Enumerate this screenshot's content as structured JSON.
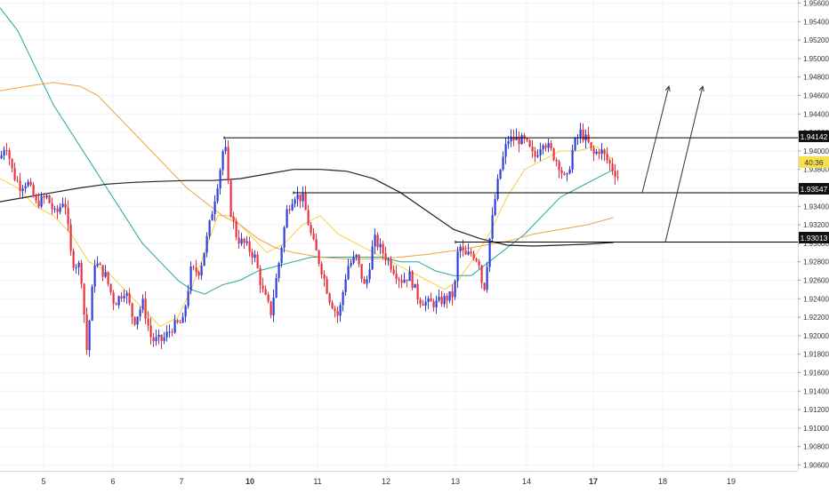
{
  "colors": {
    "background": "#ffffff",
    "up_candle": "#2f3fd9",
    "down_candle": "#e8333f",
    "ema_fast": "#f6d13a",
    "ema_teal": "#26a69a",
    "ema_orange": "#f3a23a",
    "ema_black": "#222222",
    "level_line": "#000000",
    "axis_text": "#333333",
    "grid": "#f0f3fa",
    "current_price_tag": "#f6e04b"
  },
  "price_axis": {
    "ticks": [
      "1.95600",
      "1.95400",
      "1.95200",
      "1.95000",
      "1.94800",
      "1.94600",
      "1.94400",
      "1.94200",
      "1.94000",
      "1.93800",
      "1.93600",
      "1.93400",
      "1.93200",
      "1.93000",
      "1.92800",
      "1.92600",
      "1.92400",
      "1.92200",
      "1.92000",
      "1.91800",
      "1.91600",
      "1.91400",
      "1.91200",
      "1.91000",
      "1.90800",
      "1.90600"
    ]
  },
  "time_axis": {
    "labels": [
      "5",
      "6",
      "7",
      "10",
      "11",
      "12",
      "13",
      "14",
      "17",
      "18",
      "19"
    ]
  },
  "level_labels": {
    "upper": "1.94142",
    "middle": "1.93547",
    "lower": "1.93013",
    "countdown": "40:36"
  },
  "chart_data": {
    "type": "candlestick",
    "title": "",
    "xlabel": "",
    "ylabel": "",
    "ylim": [
      1.905,
      1.9565
    ],
    "x_day_labels": [
      "5",
      "6",
      "7",
      "10",
      "11",
      "12",
      "13",
      "14",
      "17",
      "18",
      "19"
    ],
    "horizontal_levels": [
      1.94142,
      1.93547,
      1.93013
    ],
    "countdown": "40:36",
    "projection_arrows": [
      {
        "from": 1.93547,
        "to": 1.947
      },
      {
        "from": 1.93013,
        "to": 1.947
      }
    ],
    "series": [
      {
        "type": "ema",
        "color": "#f6d13a",
        "points": [
          [
            0,
            1.937
          ],
          [
            20,
            1.936
          ],
          [
            40,
            1.934
          ],
          [
            60,
            1.933
          ],
          [
            80,
            1.931
          ],
          [
            100,
            1.928
          ],
          [
            120,
            1.927
          ],
          [
            140,
            1.925
          ],
          [
            160,
            1.923
          ],
          [
            180,
            1.921
          ],
          [
            200,
            1.922
          ],
          [
            215,
            1.925
          ],
          [
            230,
            1.929
          ],
          [
            245,
            1.933
          ],
          [
            260,
            1.933
          ],
          [
            280,
            1.931
          ],
          [
            300,
            1.929
          ],
          [
            320,
            1.93
          ],
          [
            340,
            1.932
          ],
          [
            360,
            1.933
          ],
          [
            380,
            1.931
          ],
          [
            400,
            1.93
          ],
          [
            420,
            1.929
          ],
          [
            440,
            1.928
          ],
          [
            460,
            1.927
          ],
          [
            480,
            1.926
          ],
          [
            500,
            1.925
          ],
          [
            515,
            1.926
          ],
          [
            530,
            1.928
          ],
          [
            550,
            1.931
          ],
          [
            570,
            1.935
          ],
          [
            590,
            1.938
          ],
          [
            610,
            1.939
          ],
          [
            630,
            1.94
          ],
          [
            650,
            1.94
          ],
          [
            670,
            1.9405
          ],
          [
            690,
            1.939
          ]
        ]
      },
      {
        "type": "ema",
        "color": "#26a69a",
        "points": [
          [
            0,
            1.9555
          ],
          [
            20,
            1.953
          ],
          [
            40,
            1.949
          ],
          [
            60,
            1.945
          ],
          [
            80,
            1.942
          ],
          [
            100,
            1.939
          ],
          [
            120,
            1.936
          ],
          [
            140,
            1.933
          ],
          [
            160,
            1.93
          ],
          [
            180,
            1.928
          ],
          [
            200,
            1.926
          ],
          [
            215,
            1.925
          ],
          [
            230,
            1.9245
          ],
          [
            250,
            1.9255
          ],
          [
            270,
            1.926
          ],
          [
            290,
            1.927
          ],
          [
            310,
            1.9275
          ],
          [
            330,
            1.928
          ],
          [
            350,
            1.9285
          ],
          [
            370,
            1.9285
          ],
          [
            390,
            1.9285
          ],
          [
            410,
            1.9285
          ],
          [
            430,
            1.9285
          ],
          [
            450,
            1.928
          ],
          [
            470,
            1.928
          ],
          [
            490,
            1.927
          ],
          [
            510,
            1.9265
          ],
          [
            530,
            1.9265
          ],
          [
            550,
            1.928
          ],
          [
            570,
            1.9295
          ],
          [
            590,
            1.931
          ],
          [
            610,
            1.933
          ],
          [
            630,
            1.935
          ],
          [
            650,
            1.936
          ],
          [
            670,
            1.937
          ],
          [
            690,
            1.938
          ]
        ]
      },
      {
        "type": "ema",
        "color": "#f3a23a",
        "points": [
          [
            0,
            1.9465
          ],
          [
            30,
            1.947
          ],
          [
            60,
            1.9474
          ],
          [
            90,
            1.947
          ],
          [
            110,
            1.946
          ],
          [
            130,
            1.944
          ],
          [
            150,
            1.942
          ],
          [
            170,
            1.94
          ],
          [
            190,
            1.938
          ],
          [
            210,
            1.936
          ],
          [
            230,
            1.9345
          ],
          [
            250,
            1.933
          ],
          [
            270,
            1.932
          ],
          [
            290,
            1.9305
          ],
          [
            310,
            1.9295
          ],
          [
            330,
            1.929
          ],
          [
            360,
            1.9285
          ],
          [
            390,
            1.9283
          ],
          [
            420,
            1.9283
          ],
          [
            450,
            1.9285
          ],
          [
            480,
            1.9288
          ],
          [
            510,
            1.9292
          ],
          [
            540,
            1.9297
          ],
          [
            570,
            1.9302
          ],
          [
            600,
            1.931
          ],
          [
            630,
            1.9315
          ],
          [
            660,
            1.932
          ],
          [
            690,
            1.9328
          ]
        ]
      },
      {
        "type": "ema",
        "color": "#222222",
        "points": [
          [
            0,
            1.9345
          ],
          [
            30,
            1.935
          ],
          [
            60,
            1.9355
          ],
          [
            90,
            1.936
          ],
          [
            120,
            1.9364
          ],
          [
            150,
            1.9366
          ],
          [
            180,
            1.9367
          ],
          [
            210,
            1.9368
          ],
          [
            240,
            1.9368
          ],
          [
            270,
            1.937
          ],
          [
            300,
            1.9375
          ],
          [
            330,
            1.938
          ],
          [
            360,
            1.938
          ],
          [
            390,
            1.9378
          ],
          [
            420,
            1.937
          ],
          [
            450,
            1.9355
          ],
          [
            480,
            1.9335
          ],
          [
            510,
            1.9315
          ],
          [
            540,
            1.9305
          ],
          [
            570,
            1.9298
          ],
          [
            600,
            1.9297
          ],
          [
            630,
            1.9298
          ],
          [
            660,
            1.9299
          ],
          [
            690,
            1.9301
          ]
        ]
      }
    ]
  }
}
